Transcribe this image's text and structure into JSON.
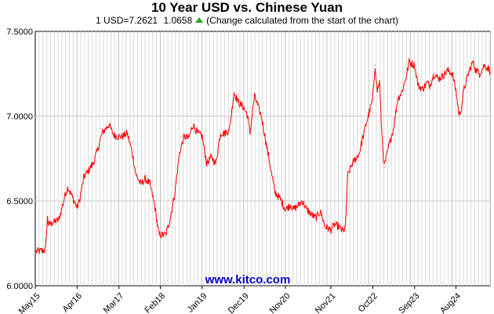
{
  "header": {
    "title": "10 Year USD vs. Chinese Yuan",
    "rate_text": "1 USD=7.2621",
    "change_text": "1.0658",
    "note_text": "(Change calculated from the start of the chart)",
    "change_direction": "up",
    "arrow_color": "#2aa52a"
  },
  "watermark": "www.kitco.com",
  "chart_data": {
    "type": "line",
    "title": "10 Year USD vs. Chinese Yuan",
    "xlabel": "",
    "ylabel": "",
    "ylim": [
      6.0,
      7.5
    ],
    "xlim": [
      "2015-05",
      "2025-05"
    ],
    "y_ticks": [
      "6.0000",
      "6.5000",
      "7.0000",
      "7.5000"
    ],
    "x_ticks": [
      {
        "label": "May15",
        "t": 2015.33
      },
      {
        "label": "Apr16",
        "t": 2016.25
      },
      {
        "label": "Mar17",
        "t": 2017.17
      },
      {
        "label": "Feb18",
        "t": 2018.08
      },
      {
        "label": "Jan19",
        "t": 2019.0
      },
      {
        "label": "Dec19",
        "t": 2019.92
      },
      {
        "label": "Nov20",
        "t": 2020.83
      },
      {
        "label": "Nov21",
        "t": 2021.83
      },
      {
        "label": "Oct22",
        "t": 2022.75
      },
      {
        "label": "Sep23",
        "t": 2023.67
      },
      {
        "label": "Aug24",
        "t": 2024.58
      }
    ],
    "grid": true,
    "line_color": "#ff0000",
    "series": [
      {
        "x": [
          2015.33,
          2015.55,
          2015.6,
          2015.62,
          2015.7,
          2015.85,
          2016.0,
          2016.05,
          2016.15,
          2016.25,
          2016.3,
          2016.4,
          2016.5,
          2016.6,
          2016.7,
          2016.8,
          2016.95,
          2017.05,
          2017.15,
          2017.25,
          2017.35,
          2017.45,
          2017.55,
          2017.65,
          2017.75,
          2017.85,
          2017.95,
          2018.05,
          2018.15,
          2018.2,
          2018.3,
          2018.4,
          2018.5,
          2018.6,
          2018.7,
          2018.8,
          2018.9,
          2019.0,
          2019.1,
          2019.2,
          2019.3,
          2019.4,
          2019.5,
          2019.6,
          2019.7,
          2019.8,
          2019.92,
          2020.0,
          2020.05,
          2020.15,
          2020.3,
          2020.4,
          2020.5,
          2020.6,
          2020.7,
          2020.83,
          2020.95,
          2021.0,
          2021.1,
          2021.2,
          2021.3,
          2021.4,
          2021.5,
          2021.6,
          2021.7,
          2021.83,
          2021.9,
          2022.0,
          2022.1,
          2022.15,
          2022.2,
          2022.3,
          2022.45,
          2022.6,
          2022.75,
          2022.8,
          2022.85,
          2022.9,
          2022.95,
          2023.0,
          2023.1,
          2023.2,
          2023.3,
          2023.4,
          2023.5,
          2023.55,
          2023.67,
          2023.75,
          2023.85,
          2023.95,
          2024.0,
          2024.1,
          2024.2,
          2024.3,
          2024.4,
          2024.5,
          2024.58,
          2024.65,
          2024.7,
          2024.75,
          2024.85,
          2024.95,
          2025.0,
          2025.1,
          2025.2,
          2025.3,
          2025.33
        ],
        "values": [
          6.2,
          6.21,
          6.4,
          6.36,
          6.37,
          6.39,
          6.55,
          6.58,
          6.52,
          6.46,
          6.5,
          6.64,
          6.68,
          6.72,
          6.8,
          6.9,
          6.95,
          6.89,
          6.88,
          6.88,
          6.9,
          6.8,
          6.65,
          6.6,
          6.63,
          6.6,
          6.48,
          6.3,
          6.3,
          6.3,
          6.4,
          6.55,
          6.78,
          6.88,
          6.87,
          6.95,
          6.9,
          6.88,
          6.72,
          6.76,
          6.72,
          6.9,
          6.9,
          6.92,
          7.14,
          7.08,
          7.05,
          7.0,
          6.9,
          7.12,
          7.0,
          6.85,
          6.7,
          6.55,
          6.52,
          6.45,
          6.48,
          6.45,
          6.47,
          6.5,
          6.45,
          6.42,
          6.4,
          6.44,
          6.35,
          6.33,
          6.36,
          6.35,
          6.32,
          6.35,
          6.65,
          6.72,
          6.78,
          6.95,
          7.1,
          7.3,
          7.15,
          7.2,
          6.9,
          6.7,
          6.82,
          6.92,
          7.1,
          7.15,
          7.25,
          7.32,
          7.3,
          7.18,
          7.16,
          7.2,
          7.18,
          7.25,
          7.22,
          7.24,
          7.27,
          7.25,
          7.15,
          7.0,
          7.05,
          7.15,
          7.25,
          7.32,
          7.28,
          7.25,
          7.3,
          7.28,
          7.26
        ]
      }
    ]
  }
}
